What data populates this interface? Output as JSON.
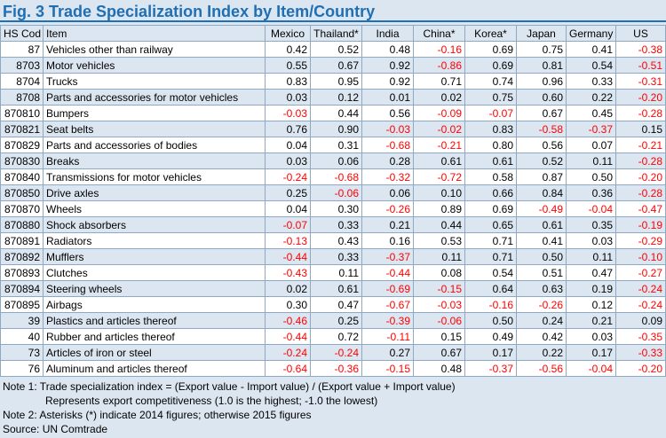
{
  "title": "Fig. 3   Trade Specialization Index by Item/Country",
  "columns": [
    "HS Cod",
    "Item",
    "Mexico",
    "Thailand*",
    "India",
    "China*",
    "Korea*",
    "Japan",
    "Germany",
    "US"
  ],
  "rows": [
    {
      "code": "87",
      "item": "Vehicles other than railway",
      "values": [
        "0.42",
        "0.52",
        "0.48",
        "-0.16",
        "0.69",
        "0.75",
        "0.41",
        "-0.38"
      ]
    },
    {
      "code": "8703",
      "item": "Motor vehicles",
      "values": [
        "0.55",
        "0.67",
        "0.92",
        "-0.86",
        "0.69",
        "0.81",
        "0.54",
        "-0.51"
      ]
    },
    {
      "code": "8704",
      "item": "Trucks",
      "values": [
        "0.83",
        "0.95",
        "0.92",
        "0.71",
        "0.74",
        "0.96",
        "0.33",
        "-0.31"
      ]
    },
    {
      "code": "8708",
      "item": "Parts and accessories for motor vehicles",
      "values": [
        "0.03",
        "0.12",
        "0.01",
        "0.02",
        "0.75",
        "0.60",
        "0.22",
        "-0.20"
      ]
    },
    {
      "code": "870810",
      "item": "Bumpers",
      "values": [
        "-0.03",
        "0.44",
        "0.56",
        "-0.09",
        "-0.07",
        "0.67",
        "0.45",
        "-0.28"
      ]
    },
    {
      "code": "870821",
      "item": "Seat belts",
      "values": [
        "0.76",
        "0.90",
        "-0.03",
        "-0.02",
        "0.83",
        "-0.58",
        "-0.37",
        "0.15"
      ]
    },
    {
      "code": "870829",
      "item": "Parts and accessories of bodies",
      "values": [
        "0.04",
        "0.31",
        "-0.68",
        "-0.21",
        "0.80",
        "0.56",
        "0.07",
        "-0.21"
      ]
    },
    {
      "code": "870830",
      "item": "Breaks",
      "values": [
        "0.03",
        "0.06",
        "0.28",
        "0.61",
        "0.61",
        "0.52",
        "0.11",
        "-0.28"
      ]
    },
    {
      "code": "870840",
      "item": "Transmissions for motor vehicles",
      "values": [
        "-0.24",
        "-0.68",
        "-0.32",
        "-0.72",
        "0.58",
        "0.87",
        "0.50",
        "-0.20"
      ]
    },
    {
      "code": "870850",
      "item": "Drive axles",
      "values": [
        "0.25",
        "-0.06",
        "0.06",
        "0.10",
        "0.66",
        "0.84",
        "0.36",
        "-0.28"
      ]
    },
    {
      "code": "870870",
      "item": "Wheels",
      "values": [
        "0.04",
        "0.30",
        "-0.26",
        "0.89",
        "0.69",
        "-0.49",
        "-0.04",
        "-0.47"
      ]
    },
    {
      "code": "870880",
      "item": "Shock absorbers",
      "values": [
        "-0.07",
        "0.33",
        "0.21",
        "0.44",
        "0.65",
        "0.61",
        "0.35",
        "-0.19"
      ]
    },
    {
      "code": "870891",
      "item": "Radiators",
      "values": [
        "-0.13",
        "0.43",
        "0.16",
        "0.53",
        "0.71",
        "0.41",
        "0.03",
        "-0.29"
      ]
    },
    {
      "code": "870892",
      "item": "Mufflers",
      "values": [
        "-0.44",
        "0.33",
        "-0.37",
        "0.11",
        "0.71",
        "0.50",
        "0.11",
        "-0.10"
      ]
    },
    {
      "code": "870893",
      "item": "Clutches",
      "values": [
        "-0.43",
        "0.11",
        "-0.44",
        "0.08",
        "0.54",
        "0.51",
        "0.47",
        "-0.27"
      ]
    },
    {
      "code": "870894",
      "item": "Steering wheels",
      "values": [
        "0.02",
        "0.61",
        "-0.69",
        "-0.15",
        "0.64",
        "0.63",
        "0.19",
        "-0.24"
      ]
    },
    {
      "code": "870895",
      "item": "Airbags",
      "values": [
        "0.30",
        "0.47",
        "-0.67",
        "-0.03",
        "-0.16",
        "-0.26",
        "0.12",
        "-0.24"
      ]
    },
    {
      "code": "39",
      "item": "Plastics and articles thereof",
      "values": [
        "-0.46",
        "0.25",
        "-0.39",
        "-0.06",
        "0.50",
        "0.24",
        "0.21",
        "0.09"
      ]
    },
    {
      "code": "40",
      "item": "Rubber and articles thereof",
      "values": [
        "-0.44",
        "0.72",
        "-0.11",
        "0.15",
        "0.49",
        "0.42",
        "0.03",
        "-0.35"
      ]
    },
    {
      "code": "73",
      "item": "Articles of iron or steel",
      "values": [
        "-0.24",
        "-0.24",
        "0.27",
        "0.67",
        "0.17",
        "0.22",
        "0.17",
        "-0.33"
      ]
    },
    {
      "code": "76",
      "item": "Aluminum and articles thereof",
      "values": [
        "-0.64",
        "-0.36",
        "-0.15",
        "0.48",
        "-0.37",
        "-0.56",
        "-0.04",
        "-0.20"
      ]
    }
  ],
  "notes": [
    "Note 1: Trade specialization index = (Export value - Import value) / (Export value + Import value)",
    "Represents export competitiveness (1.0 is the highest; -1.0 the lowest)",
    "Note 2: Asterisks (*) indicate 2014 figures; otherwise 2015 figures",
    "Source: UN Comtrade"
  ],
  "colors": {
    "title": "#1f6fb4",
    "negative": "#ff0000",
    "band": "#dce6f1",
    "border": "#8ea9c1"
  }
}
